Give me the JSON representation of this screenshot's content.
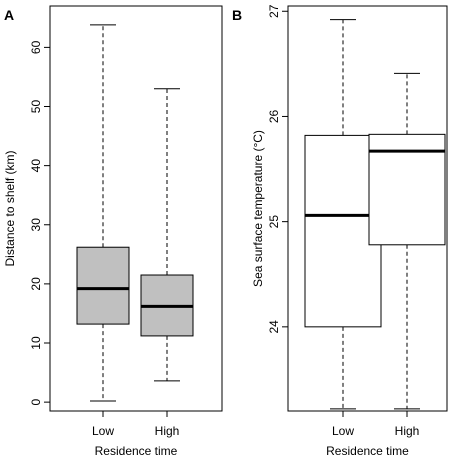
{
  "chart_data": [
    {
      "type": "boxplot",
      "panel_label": "A",
      "xlabel": "Residence time",
      "ylabel": "Distance to shelf (km)",
      "ylim": [
        -1.5,
        67
      ],
      "yticks": [
        0,
        10,
        20,
        30,
        40,
        50,
        60
      ],
      "categories": [
        "Low",
        "High"
      ],
      "boxes": [
        {
          "category": "Low",
          "whisker_low": 0.2,
          "q1": 13.2,
          "median": 19.2,
          "q3": 26.2,
          "whisker_high": 63.8
        },
        {
          "category": "High",
          "whisker_low": 3.6,
          "q1": 11.2,
          "median": 16.2,
          "q3": 21.5,
          "whisker_high": 53.0
        }
      ],
      "box_fill": "#c0c0c0"
    },
    {
      "type": "boxplot",
      "panel_label": "B",
      "xlabel": "Residence time",
      "ylabel": "Sea surface temperature (°C)",
      "ylim": [
        23.2,
        27.05
      ],
      "yticks": [
        24,
        25,
        26,
        27
      ],
      "categories": [
        "Low",
        "High"
      ],
      "boxes": [
        {
          "category": "Low",
          "whisker_low": 23.22,
          "q1": 24.0,
          "median": 25.06,
          "q3": 25.82,
          "whisker_high": 26.92
        },
        {
          "category": "High",
          "whisker_low": 23.22,
          "q1": 24.78,
          "median": 25.67,
          "q3": 25.83,
          "whisker_high": 26.41
        }
      ],
      "box_fill": "#ffffff"
    }
  ]
}
